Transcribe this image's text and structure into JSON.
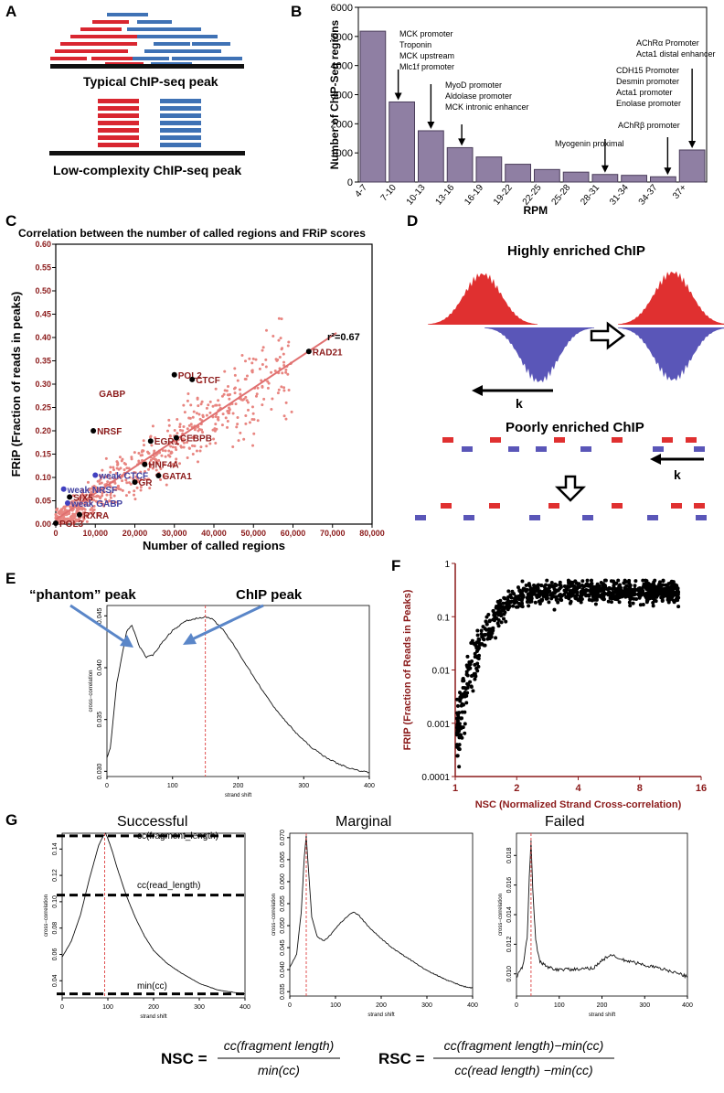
{
  "panels": {
    "A": {
      "letter": "A",
      "caption_typical": "Typical ChIP-seq peak",
      "caption_low": "Low-complexity ChIP-seq peak",
      "colors": {
        "forward": "#d92630",
        "reverse": "#3f72b5",
        "baseline": "#111111"
      }
    },
    "B": {
      "letter": "B",
      "chart_data": {
        "type": "bar",
        "categories": [
          "4-7",
          "7-10",
          "10-13",
          "13-16",
          "16-19",
          "19-22",
          "22-25",
          "25-28",
          "28-31",
          "31-34",
          "34-37",
          "37+"
        ],
        "values": [
          5180,
          2750,
          1760,
          1180,
          860,
          610,
          430,
          340,
          260,
          230,
          180,
          1100
        ],
        "xlabel": "RPM",
        "ylabel": "Number of ChIP-Seq regions",
        "ylim": [
          0,
          6000
        ],
        "yticks": [
          "0",
          "1000",
          "2000",
          "3000",
          "4000",
          "5000",
          "6000"
        ],
        "bar_color": "#8f7fa3",
        "annotations": [
          {
            "target": "7-10",
            "lines": [
              "MCK promoter",
              "Troponin",
              "MCK upstream",
              "Mlc1f promoter"
            ]
          },
          {
            "target": "10-13",
            "lines": []
          },
          {
            "target": "13-16",
            "lines": [
              "MyoD promoter",
              "Aldolase promoter",
              "MCK intronic enhancer"
            ]
          },
          {
            "target": "28-31",
            "lines": [
              "Myogenin proximal"
            ]
          },
          {
            "target": "34-37",
            "lines": [
              "CDH15 Promoter",
              "Desmin promoter",
              "Acta1 promoter",
              "Enolase promoter"
            ]
          },
          {
            "target": "37+",
            "lines": [
              "AChRα Promoter",
              "Acta1 distal enhancer"
            ]
          },
          {
            "target": "37+",
            "lines": [
              "AChRβ promoter"
            ]
          }
        ]
      }
    },
    "C": {
      "letter": "C",
      "chart_data": {
        "type": "scatter",
        "title": "Correlation between the number of called regions and FRiP scores",
        "xlabel": "Number of called regions",
        "ylabel": "FRiP (Fraction of reads in peaks)",
        "xlim": [
          0,
          80000
        ],
        "ylim": [
          0,
          0.6
        ],
        "xticks": [
          "0",
          "10,000",
          "20,000",
          "30,000",
          "40,000",
          "50,000",
          "60,000",
          "70,000",
          "80,000"
        ],
        "yticks": [
          "0.00",
          "0.05",
          "0.10",
          "0.15",
          "0.20",
          "0.25",
          "0.30",
          "0.35",
          "0.40",
          "0.45",
          "0.50",
          "0.55",
          "0.60"
        ],
        "r2_label": "r²=0.67",
        "point_color": "#e88580",
        "fit_line": [
          [
            0,
            0.01
          ],
          [
            71000,
            0.41
          ]
        ],
        "labeled_points": [
          {
            "label": "RAD21",
            "x": 64000,
            "y": 0.37,
            "color": "#8b1a1a",
            "dot": true
          },
          {
            "label": "POL2",
            "x": 30000,
            "y": 0.32,
            "color": "#8b1a1a",
            "dot": true
          },
          {
            "label": "CTCF",
            "x": 34500,
            "y": 0.31,
            "color": "#8b1a1a",
            "dot": true
          },
          {
            "label": "GABP",
            "x": 10000,
            "y": 0.28,
            "color": "#8b1a1a",
            "dot": false
          },
          {
            "label": "NRSF",
            "x": 9500,
            "y": 0.2,
            "color": "#8b1a1a",
            "dot": true
          },
          {
            "label": "EGR1",
            "x": 24000,
            "y": 0.178,
            "color": "#8b1a1a",
            "dot": true
          },
          {
            "label": "CEBPB",
            "x": 30500,
            "y": 0.185,
            "color": "#8b1a1a",
            "dot": true
          },
          {
            "label": "HNF4A",
            "x": 22500,
            "y": 0.128,
            "color": "#8b1a1a",
            "dot": true
          },
          {
            "label": "GATA1",
            "x": 26000,
            "y": 0.104,
            "color": "#8b1a1a",
            "dot": true
          },
          {
            "label": "GR",
            "x": 20000,
            "y": 0.09,
            "color": "#8b1a1a",
            "dot": true
          },
          {
            "label": "weak CTCF",
            "x": 10000,
            "y": 0.105,
            "color": "#4040a0",
            "dot": true
          },
          {
            "label": "weak NRSF",
            "x": 2000,
            "y": 0.075,
            "color": "#4040a0",
            "dot": true
          },
          {
            "label": "SIX5",
            "x": 3500,
            "y": 0.058,
            "color": "#8b1a1a",
            "dot": true
          },
          {
            "label": "weak GABP",
            "x": 3000,
            "y": 0.045,
            "color": "#4040a0",
            "dot": true
          },
          {
            "label": "RXRA",
            "x": 6000,
            "y": 0.02,
            "color": "#8b1a1a",
            "dot": true
          },
          {
            "label": "POL3",
            "x": 0,
            "y": 0.002,
            "color": "#8b1a1a",
            "dot": true
          }
        ]
      }
    },
    "D": {
      "letter": "D",
      "title_high": "Highly enriched ChIP",
      "title_poor": "Poorly enriched ChIP",
      "k_label": "k"
    },
    "E": {
      "letter": "E",
      "phantom_label": "“phantom” peak",
      "chip_label": "ChIP peak",
      "chart_data": {
        "type": "line",
        "xlabel": "strand shift",
        "ylabel": "cross−correlation",
        "xlim": [
          0,
          400
        ],
        "ylim": [
          0.0295,
          0.046
        ],
        "xticks": [
          "0",
          "100",
          "200",
          "300",
          "400"
        ],
        "yticks": [
          "0.030",
          "0.035",
          "0.040",
          "0.045"
        ],
        "x": [
          0,
          5,
          15,
          30,
          38,
          50,
          60,
          70,
          85,
          100,
          120,
          140,
          150,
          160,
          175,
          190,
          210,
          230,
          250,
          270,
          290,
          310,
          330,
          350,
          370,
          390,
          400
        ],
        "y": [
          0.0313,
          0.0322,
          0.0385,
          0.0435,
          0.0441,
          0.042,
          0.041,
          0.0412,
          0.0425,
          0.0436,
          0.0445,
          0.0448,
          0.0449,
          0.0447,
          0.0438,
          0.0425,
          0.0405,
          0.0385,
          0.0366,
          0.035,
          0.0336,
          0.0324,
          0.0315,
          0.0308,
          0.0303,
          0.03,
          0.0299
        ],
        "marker_x": 150
      }
    },
    "F": {
      "letter": "F",
      "chart_data": {
        "type": "scatter",
        "xlabel": "NSC (Normalized Strand Cross-correlation)",
        "ylabel": "FRIP (Fraction of Reads in Peaks)",
        "x_scale": "log2",
        "y_scale": "log10",
        "xlim": [
          1,
          16
        ],
        "ylim": [
          0.0001,
          1
        ],
        "xticks": [
          "1",
          "2",
          "4",
          "8",
          "16"
        ],
        "yticks": [
          "0.0001",
          "0.001",
          "0.01",
          "0.1",
          "1"
        ],
        "point_color": "#000000"
      }
    },
    "G": {
      "letter": "G",
      "successful": {
        "title": "Successful",
        "labels": {
          "fragment": "cc(fragment_length)",
          "read": "cc(read_length)",
          "min": "min(cc)"
        },
        "chart_data": {
          "type": "line",
          "xlabel": "strand shift",
          "ylabel": "cross−correlation",
          "xlim": [
            0,
            400
          ],
          "ylim": [
            0.027,
            0.152
          ],
          "xticks": [
            "0",
            "100",
            "200",
            "300",
            "400"
          ],
          "yticks": [
            "0.04",
            "0.06",
            "0.08",
            "0.10",
            "0.12",
            "0.14"
          ],
          "x": [
            0,
            20,
            40,
            60,
            80,
            90,
            95,
            100,
            110,
            120,
            140,
            160,
            180,
            200,
            230,
            260,
            300,
            340,
            380,
            400
          ],
          "y": [
            0.058,
            0.07,
            0.09,
            0.118,
            0.143,
            0.15,
            0.152,
            0.148,
            0.138,
            0.126,
            0.105,
            0.088,
            0.074,
            0.063,
            0.053,
            0.046,
            0.038,
            0.033,
            0.031,
            0.03
          ],
          "marker_x": 93,
          "levels": {
            "fragment": 0.15,
            "read": 0.105,
            "min": 0.03
          }
        }
      },
      "marginal": {
        "title": "Marginal",
        "chart_data": {
          "type": "line",
          "xlabel": "strand shift",
          "ylabel": "cross−correlation",
          "xlim": [
            0,
            400
          ],
          "ylim": [
            0.034,
            0.071
          ],
          "xticks": [
            "0",
            "100",
            "200",
            "300",
            "400"
          ],
          "yticks": [
            "0.035",
            "0.040",
            "0.045",
            "0.050",
            "0.055",
            "0.060",
            "0.065",
            "0.070"
          ],
          "x": [
            0,
            15,
            25,
            32,
            36,
            40,
            48,
            60,
            75,
            90,
            110,
            130,
            140,
            150,
            170,
            200,
            230,
            260,
            300,
            340,
            380,
            400
          ],
          "y": [
            0.0405,
            0.0435,
            0.053,
            0.066,
            0.0705,
            0.064,
            0.052,
            0.0475,
            0.0465,
            0.048,
            0.0505,
            0.0525,
            0.053,
            0.0525,
            0.05,
            0.047,
            0.0445,
            0.0425,
            0.0398,
            0.0378,
            0.0362,
            0.0358
          ],
          "marker_x": 36
        }
      },
      "failed": {
        "title": "Failed",
        "chart_data": {
          "type": "line",
          "xlabel": "strand shift",
          "ylabel": "cross−correlation",
          "xlim": [
            0,
            400
          ],
          "ylim": [
            0.0085,
            0.0195
          ],
          "xticks": [
            "0",
            "100",
            "200",
            "300",
            "400"
          ],
          "yticks": [
            "0.010",
            "0.012",
            "0.014",
            "0.016",
            "0.018"
          ],
          "x": [
            0,
            15,
            25,
            30,
            34,
            38,
            45,
            55,
            70,
            90,
            120,
            150,
            180,
            200,
            220,
            240,
            270,
            300,
            330,
            360,
            390,
            400
          ],
          "y": [
            0.0098,
            0.0105,
            0.0125,
            0.0165,
            0.019,
            0.0158,
            0.0122,
            0.0108,
            0.0105,
            0.0103,
            0.0103,
            0.0103,
            0.0104,
            0.0109,
            0.0113,
            0.011,
            0.0108,
            0.0106,
            0.0104,
            0.0102,
            0.0099,
            0.0098
          ],
          "marker_x": 34
        }
      }
    },
    "formulas": {
      "nsc_left": "NSC =",
      "nsc_num": "cc(fragment length)",
      "nsc_den": "min(cc)",
      "rsc_left": "RSC =",
      "rsc_num": "cc(fragment length)−min(cc)",
      "rsc_den": "cc(read length) −min(cc)"
    }
  }
}
